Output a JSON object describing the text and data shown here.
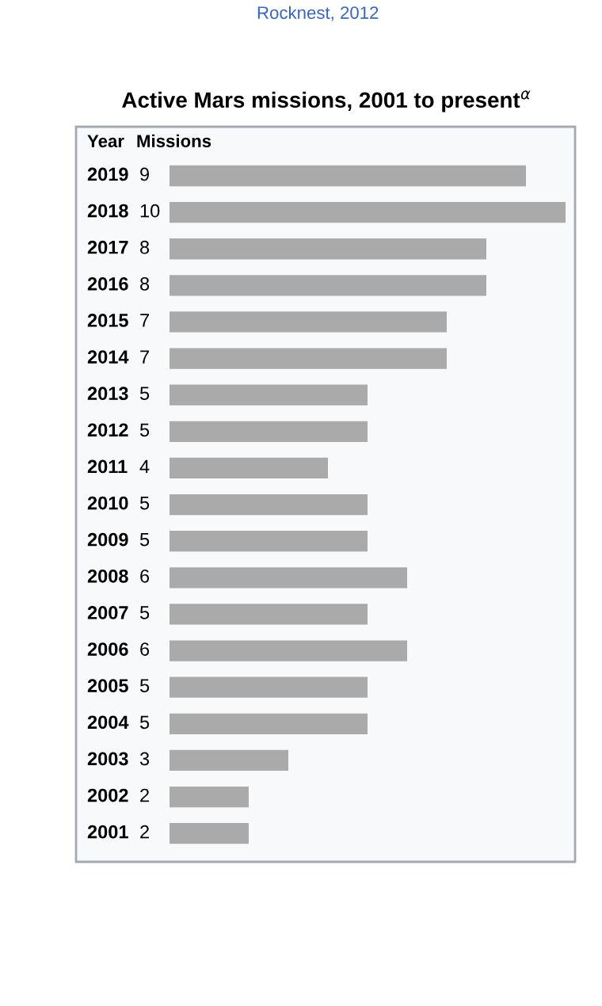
{
  "chart_data": {
    "type": "bar",
    "orientation": "horizontal",
    "title": "Active Mars missions, 2001 to present$^{α}$",
    "ylabel": "Year",
    "xlabel": "Missions",
    "categories": [
      "2019",
      "2018",
      "2017",
      "2016",
      "2015",
      "2014",
      "2013",
      "2012",
      "2011",
      "2010",
      "2009",
      "2008",
      "2007",
      "2006",
      "2005",
      "2004",
      "2003",
      "2002",
      "2001"
    ],
    "values": [
      9,
      10,
      8,
      8,
      7,
      7,
      5,
      5,
      4,
      5,
      5,
      6,
      5,
      6,
      5,
      5,
      3,
      2,
      2
    ],
    "color": "#aaaaaa",
    "data_labels": true,
    "annotations": [
      "Rocknest, 2012"
    ]
  }
}
